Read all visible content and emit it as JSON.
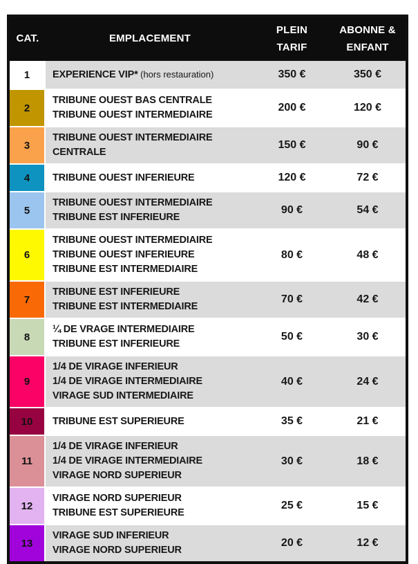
{
  "table": {
    "border_color": "#101010",
    "stripe_color": "#DBDBDB",
    "header": {
      "bg": "#0D0D0D",
      "text_color": "#FFFFFF",
      "cat_label": "CAT.",
      "location_label": "EMPLACEMENT",
      "full_price_line1": "PLEIN",
      "full_price_line2": "TARIF",
      "subscriber_line1": "ABONNE &",
      "subscriber_line2": "ENFANT"
    },
    "rows": [
      {
        "cat": "1",
        "color": "#FFFFFF",
        "bg": "#DBDBDB",
        "lines": [
          "EXPERIENCE VIP*"
        ],
        "note": "(hors restauration)",
        "full_price": "350 €",
        "subscriber_price": "350 €"
      },
      {
        "cat": "2",
        "color": "#C09500",
        "bg": "#FFFFFF",
        "lines": [
          "TRIBUNE OUEST BAS CENTRALE",
          "TRIBUNE OUEST INTERMEDIAIRE"
        ],
        "full_price": "200 €",
        "subscriber_price": "120 €"
      },
      {
        "cat": "3",
        "color": "#F9A24B",
        "bg": "#DBDBDB",
        "lines": [
          "TRIBUNE OUEST INTERMEDIAIRE",
          "CENTRALE"
        ],
        "full_price": "150 €",
        "subscriber_price": "90 €"
      },
      {
        "cat": "4",
        "color": "#0E93C0",
        "bg": "#FFFFFF",
        "lines": [
          "TRIBUNE OUEST INFERIEURE"
        ],
        "full_price": "120 €",
        "subscriber_price": "72 €"
      },
      {
        "cat": "5",
        "color": "#9BC5EE",
        "bg": "#DBDBDB",
        "lines": [
          "TRIBUNE OUEST INTERMEDIAIRE",
          "TRIBUNE EST INFERIEURE"
        ],
        "full_price": "90 €",
        "subscriber_price": "54 €"
      },
      {
        "cat": "6",
        "color": "#FEF900",
        "bg": "#FFFFFF",
        "lines": [
          "TRIBUNE OUEST INTERMEDIAIRE",
          "TRIBUNE OUEST INFERIEURE",
          "TRIBUNE EST INTERMEDIAIRE"
        ],
        "full_price": "80 €",
        "subscriber_price": "48 €"
      },
      {
        "cat": "7",
        "color": "#F96A06",
        "bg": "#DBDBDB",
        "lines": [
          "TRIBUNE EST INFERIEURE",
          "TRIBUNE EST INTERMEDIAIRE"
        ],
        "full_price": "70 €",
        "subscriber_price": "42 €"
      },
      {
        "cat": "8",
        "color": "#C8D9B6",
        "bg": "#FFFFFF",
        "lines": [
          "¼ DE VRAGE INTERMEDIAIRE",
          "TRIBUNE EST INFERIEURE"
        ],
        "full_price": "50 €",
        "subscriber_price": "30 €"
      },
      {
        "cat": "9",
        "color": "#FB0366",
        "bg": "#DBDBDB",
        "lines": [
          "1/4 DE VIRAGE INFERIEUR",
          "1/4 DE VIRAGE INTERMEDIAIRE",
          "VIRAGE SUD INTERMEDIAIRE"
        ],
        "full_price": "40 €",
        "subscriber_price": "24 €"
      },
      {
        "cat": "10",
        "color": "#970341",
        "bg": "#FFFFFF",
        "lines": [
          "TRIBUNE EST SUPERIEURE"
        ],
        "full_price": "35 €",
        "subscriber_price": "21 €"
      },
      {
        "cat": "11",
        "color": "#DB9097",
        "bg": "#DBDBDB",
        "lines": [
          "1/4 DE VIRAGE INFERIEUR",
          "1/4 DE VIRAGE INTERMEDIAIRE",
          "VIRAGE NORD SUPERIEUR"
        ],
        "full_price": "30 €",
        "subscriber_price": "18 €"
      },
      {
        "cat": "12",
        "color": "#E2B3F0",
        "bg": "#FFFFFF",
        "lines": [
          "VIRAGE NORD SUPERIEUR",
          "TRIBUNE EST SUPERIEURE"
        ],
        "full_price": "25 €",
        "subscriber_price": "15 €"
      },
      {
        "cat": "13",
        "color": "#A004DB",
        "bg": "#DBDBDB",
        "lines": [
          "VIRAGE SUD INFERIEUR",
          "VIRAGE NORD SUPERIEUR"
        ],
        "full_price": "20 €",
        "subscriber_price": "12 €"
      }
    ]
  }
}
